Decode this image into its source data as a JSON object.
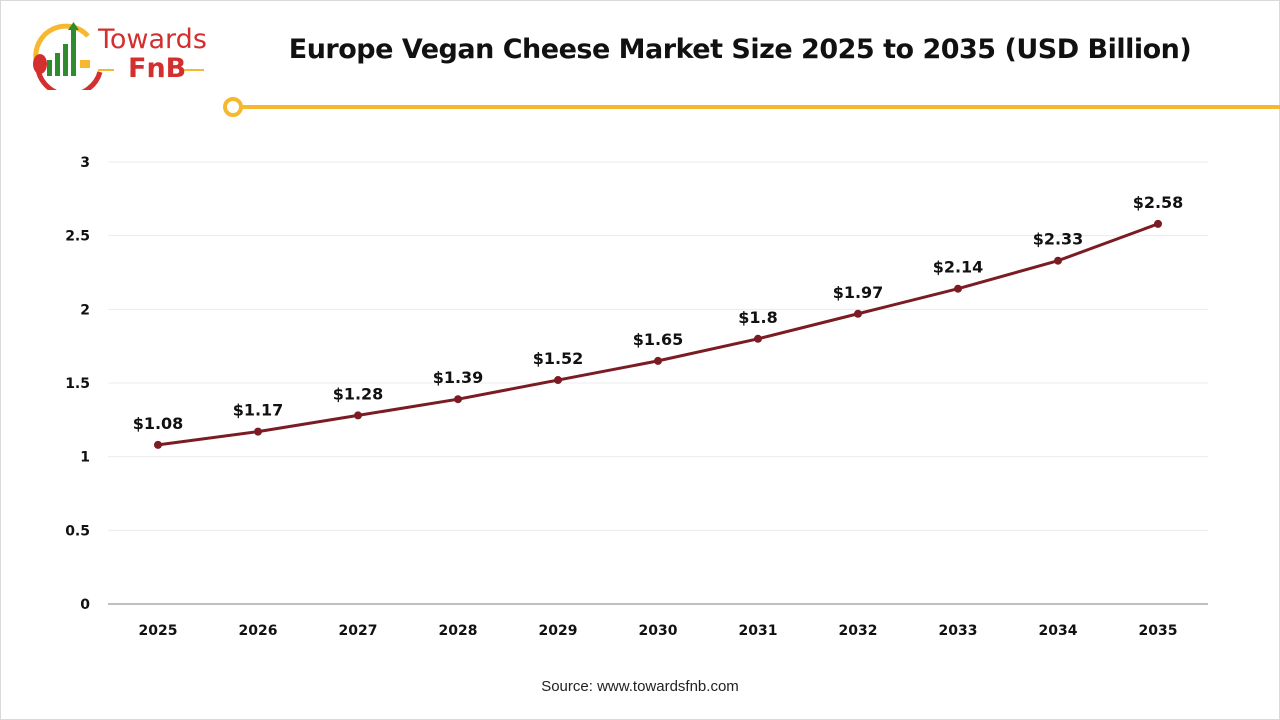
{
  "brand": {
    "logo_text_top": "Towards",
    "logo_text_bottom": "FnB"
  },
  "source": "Source: www.towardsfnb.com",
  "colors": {
    "line": "#7b1c24",
    "accent": "#f5b82e",
    "brand_red": "#d32f2f",
    "brand_green": "#2e8b2e"
  },
  "chart_data": {
    "type": "line",
    "title": "Europe Vegan Cheese Market Size 2025 to 2035 (USD Billion)",
    "xlabel": "",
    "ylabel": "",
    "categories": [
      "2025",
      "2026",
      "2027",
      "2028",
      "2029",
      "2030",
      "2031",
      "2032",
      "2033",
      "2034",
      "2035"
    ],
    "values": [
      1.08,
      1.17,
      1.28,
      1.39,
      1.52,
      1.65,
      1.8,
      1.97,
      2.14,
      2.33,
      2.58
    ],
    "data_labels": [
      "$1.08",
      "$1.17",
      "$1.28",
      "$1.39",
      "$1.52",
      "$1.65",
      "$1.8",
      "$1.97",
      "$2.14",
      "$2.33",
      "$2.58"
    ],
    "ylim": [
      0,
      3
    ],
    "yticks": [
      "0",
      "0.5",
      "1",
      "1.5",
      "2",
      "2.5",
      "3"
    ],
    "grid": true,
    "legend": "none"
  }
}
